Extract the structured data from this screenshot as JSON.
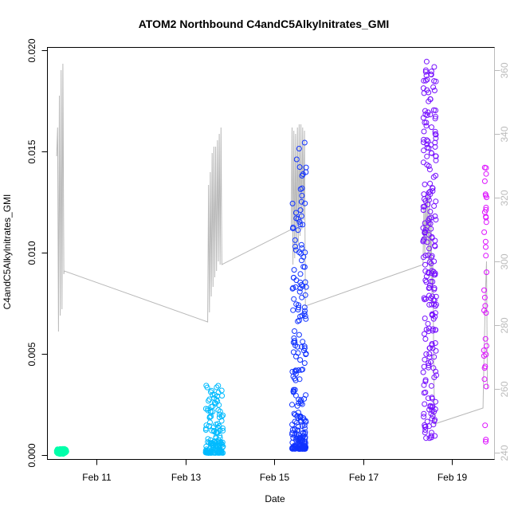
{
  "chart_data": {
    "type": "scatter",
    "title": "ATOM2 Northbound C4andC5Alkylnitrates_GMI",
    "xlabel": "Date",
    "ylabel": "C4andC5Alkylnitrates_GMI",
    "xlim": [
      9.9,
      19.95
    ],
    "ylim": [
      -0.0002,
      0.0201
    ],
    "x_ticks": [
      {
        "value": 11,
        "label": "Feb 11"
      },
      {
        "value": 13,
        "label": "Feb 13"
      },
      {
        "value": 15,
        "label": "Feb 15"
      },
      {
        "value": 17,
        "label": "Feb 17"
      },
      {
        "value": 19,
        "label": "Feb 19"
      }
    ],
    "y_ticks": [
      {
        "value": 0.0,
        "label": "0.000"
      },
      {
        "value": 0.005,
        "label": "0.005"
      },
      {
        "value": 0.01,
        "label": "0.010"
      },
      {
        "value": 0.015,
        "label": "0.015"
      },
      {
        "value": 0.02,
        "label": "0.020"
      }
    ],
    "y2_lim": [
      238,
      367
    ],
    "y2_ticks": [
      {
        "value": 240,
        "label": "240"
      },
      {
        "value": 260,
        "label": "260"
      },
      {
        "value": 280,
        "label": "280"
      },
      {
        "value": 300,
        "label": "300"
      },
      {
        "value": 320,
        "label": "320"
      },
      {
        "value": 340,
        "label": "340"
      },
      {
        "value": 360,
        "label": "360"
      }
    ],
    "grid": false,
    "legend": "none",
    "secondary_line_color": "#b8b8b8",
    "flights": [
      {
        "color": "#00ffaa",
        "t_start": 10.1,
        "t_end": 10.32,
        "y_min": 5e-05,
        "y_max": 0.0003,
        "n": 90,
        "dist": "uniform"
      },
      {
        "color": "#00bbff",
        "t_start": 13.45,
        "t_end": 13.85,
        "y_min": 0.0001,
        "y_max": 0.0035,
        "n": 140,
        "dist": "low"
      },
      {
        "color": "#1133ff",
        "t_start": 15.4,
        "t_end": 15.72,
        "y_min": 0.0003,
        "y_max": 0.0155,
        "n": 230,
        "dist": "low"
      },
      {
        "color": "#7711ff",
        "t_start": 18.35,
        "t_end": 18.65,
        "y_min": 0.0008,
        "y_max": 0.0195,
        "n": 230,
        "dist": "uniform"
      },
      {
        "color": "#dd11ff",
        "t_start": 19.72,
        "t_end": 19.78,
        "y_min": 0.0004,
        "y_max": 0.0156,
        "n": 35,
        "dist": "uniform"
      }
    ],
    "secondary_line": [
      [
        10.1,
        333
      ],
      [
        10.12,
        342
      ],
      [
        10.14,
        278
      ],
      [
        10.16,
        352
      ],
      [
        10.18,
        283
      ],
      [
        10.2,
        360
      ],
      [
        10.22,
        285
      ],
      [
        10.24,
        362
      ],
      [
        10.26,
        296
      ],
      [
        10.27,
        297
      ],
      [
        13.5,
        281
      ],
      [
        13.52,
        324
      ],
      [
        13.54,
        284
      ],
      [
        13.56,
        328
      ],
      [
        13.58,
        289
      ],
      [
        13.6,
        334
      ],
      [
        13.62,
        292
      ],
      [
        13.64,
        336
      ],
      [
        13.66,
        295
      ],
      [
        13.68,
        336
      ],
      [
        13.7,
        297
      ],
      [
        13.72,
        338
      ],
      [
        13.74,
        300
      ],
      [
        13.76,
        340
      ],
      [
        13.78,
        299
      ],
      [
        13.8,
        342
      ],
      [
        13.82,
        299
      ],
      [
        15.38,
        310
      ],
      [
        15.4,
        342
      ],
      [
        15.42,
        299
      ],
      [
        15.44,
        341
      ],
      [
        15.46,
        301
      ],
      [
        15.48,
        340
      ],
      [
        15.5,
        303
      ],
      [
        15.52,
        342
      ],
      [
        15.54,
        305
      ],
      [
        15.56,
        343
      ],
      [
        15.58,
        308
      ],
      [
        15.6,
        343
      ],
      [
        15.62,
        310
      ],
      [
        15.64,
        342
      ],
      [
        15.66,
        313
      ],
      [
        15.68,
        341
      ],
      [
        15.7,
        286
      ],
      [
        18.35,
        299
      ],
      [
        18.37,
        318
      ],
      [
        18.39,
        302
      ],
      [
        18.41,
        320
      ],
      [
        18.43,
        305
      ],
      [
        18.45,
        322
      ],
      [
        18.47,
        300
      ],
      [
        18.49,
        320
      ],
      [
        18.51,
        295
      ],
      [
        18.53,
        315
      ],
      [
        18.55,
        290
      ],
      [
        18.57,
        300
      ],
      [
        18.59,
        270
      ],
      [
        18.61,
        249
      ],
      [
        19.7,
        254
      ],
      [
        19.72,
        268
      ],
      [
        19.74,
        280
      ],
      [
        19.76,
        292
      ],
      [
        19.78,
        300
      ],
      [
        19.8,
        260
      ]
    ]
  }
}
